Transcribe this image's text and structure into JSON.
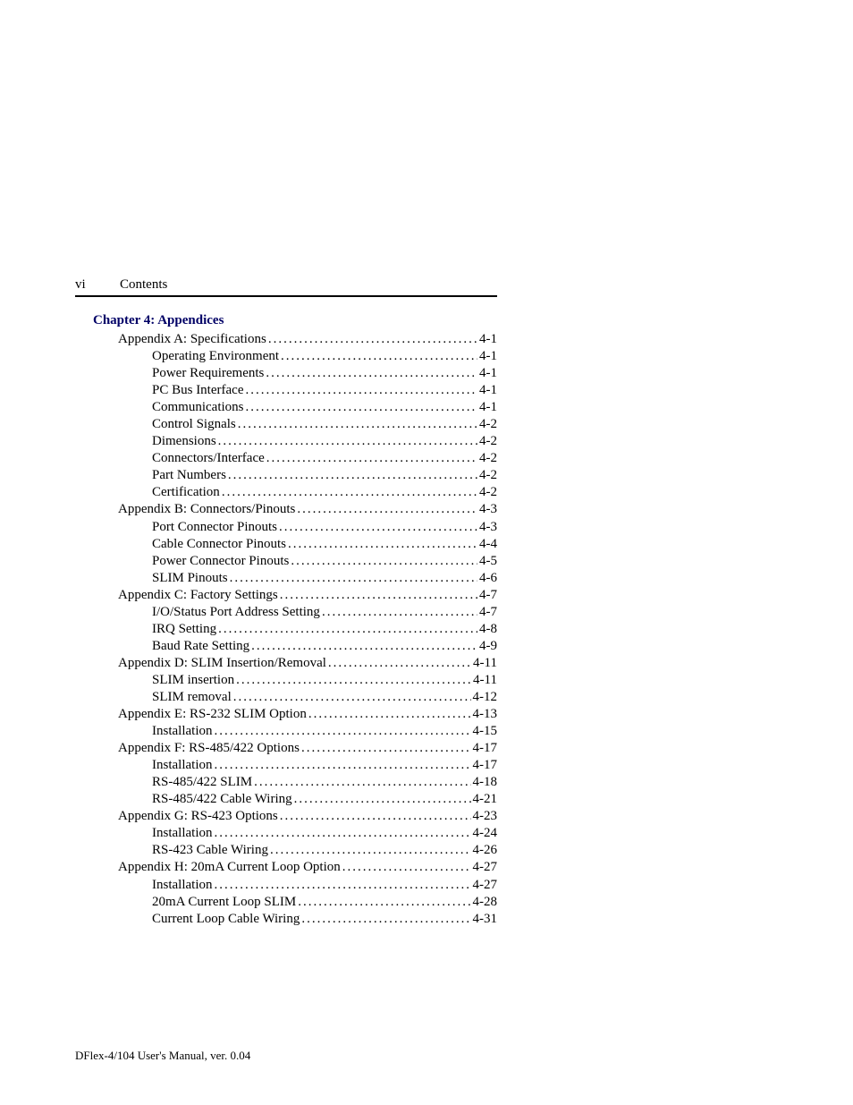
{
  "colors": {
    "text": "#000000",
    "heading": "#000066",
    "rule": "#000000",
    "background": "#ffffff"
  },
  "typography": {
    "body_family": "Times New Roman",
    "body_size_pt": 11,
    "heading_weight": "bold"
  },
  "header": {
    "page_marker": "vi",
    "section_title": "Contents"
  },
  "chapter": {
    "title": "Chapter 4: Appendices"
  },
  "toc": {
    "entries": [
      {
        "level": 0,
        "label": "Appendix A: Specifications",
        "page": "4-1"
      },
      {
        "level": 1,
        "label": "Operating Environment",
        "page": "4-1"
      },
      {
        "level": 1,
        "label": "Power Requirements",
        "page": "4-1"
      },
      {
        "level": 1,
        "label": "PC Bus Interface",
        "page": "4-1"
      },
      {
        "level": 1,
        "label": "Communications",
        "page": "4-1"
      },
      {
        "level": 1,
        "label": "Control Signals",
        "page": "4-2"
      },
      {
        "level": 1,
        "label": "Dimensions",
        "page": "4-2"
      },
      {
        "level": 1,
        "label": "Connectors/Interface",
        "page": "4-2"
      },
      {
        "level": 1,
        "label": "Part Numbers",
        "page": "4-2"
      },
      {
        "level": 1,
        "label": "Certification",
        "page": "4-2"
      },
      {
        "level": 0,
        "label": "Appendix B: Connectors/Pinouts",
        "page": "4-3"
      },
      {
        "level": 1,
        "label": "Port Connector Pinouts",
        "page": "4-3"
      },
      {
        "level": 1,
        "label": "Cable Connector Pinouts",
        "page": "4-4"
      },
      {
        "level": 1,
        "label": "Power Connector Pinouts",
        "page": "4-5"
      },
      {
        "level": 1,
        "label": "SLIM Pinouts",
        "page": "4-6"
      },
      {
        "level": 0,
        "label": "Appendix C: Factory Settings",
        "page": "4-7"
      },
      {
        "level": 1,
        "label": "I/O/Status Port Address Setting",
        "page": "4-7"
      },
      {
        "level": 1,
        "label": "IRQ Setting",
        "page": "4-8"
      },
      {
        "level": 1,
        "label": "Baud Rate Setting",
        "page": "4-9"
      },
      {
        "level": 0,
        "label": "Appendix D: SLIM Insertion/Removal",
        "page": "4-11"
      },
      {
        "level": 1,
        "label": "SLIM insertion",
        "page": "4-11"
      },
      {
        "level": 1,
        "label": "SLIM removal",
        "page": "4-12"
      },
      {
        "level": 0,
        "label": "Appendix E: RS-232 SLIM Option",
        "page": "4-13"
      },
      {
        "level": 1,
        "label": "Installation",
        "page": "4-15"
      },
      {
        "level": 0,
        "label": "Appendix F: RS-485/422 Options",
        "page": "4-17"
      },
      {
        "level": 1,
        "label": "Installation",
        "page": "4-17"
      },
      {
        "level": 1,
        "label": "RS-485/422 SLIM",
        "page": "4-18"
      },
      {
        "level": 1,
        "label": "RS-485/422 Cable Wiring",
        "page": "4-21"
      },
      {
        "level": 0,
        "label": "Appendix G: RS-423 Options",
        "page": "4-23"
      },
      {
        "level": 1,
        "label": "Installation",
        "page": "4-24"
      },
      {
        "level": 1,
        "label": "RS-423 Cable Wiring",
        "page": "4-26"
      },
      {
        "level": 0,
        "label": "Appendix H: 20mA Current Loop Option",
        "page": "4-27"
      },
      {
        "level": 1,
        "label": "Installation",
        "page": "4-27"
      },
      {
        "level": 1,
        "label": "20mA Current Loop SLIM",
        "page": "4-28"
      },
      {
        "level": 1,
        "label": "Current Loop Cable Wiring",
        "page": "4-31"
      }
    ]
  },
  "footer": {
    "text": "DFlex-4/104 User's Manual, ver. 0.04"
  }
}
